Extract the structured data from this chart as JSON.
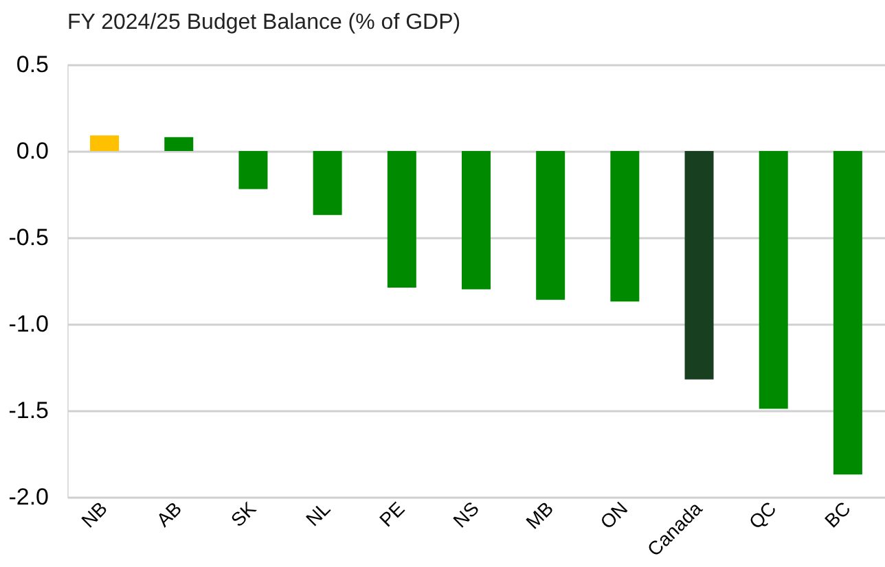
{
  "chart_data": {
    "type": "bar",
    "title": "FY 2024/25 Budget Balance (% of GDP)",
    "categories": [
      "NB",
      "AB",
      "SK",
      "NL",
      "PE",
      "NS",
      "MB",
      "ON",
      "Canada",
      "QC",
      "BC"
    ],
    "values": [
      0.09,
      0.08,
      -0.22,
      -0.37,
      -0.79,
      -0.8,
      -0.86,
      -0.87,
      -1.32,
      -1.49,
      -1.87
    ],
    "colors": [
      "#ffc000",
      "#008a00",
      "#008a00",
      "#008a00",
      "#008a00",
      "#008a00",
      "#008a00",
      "#008a00",
      "#173f20",
      "#008a00",
      "#008a00"
    ],
    "ylim": [
      -2.0,
      0.5
    ],
    "yticks": [
      {
        "value": 0.5,
        "label": "0.5"
      },
      {
        "value": 0.0,
        "label": "0.0"
      },
      {
        "value": -0.5,
        "label": "-0.5"
      },
      {
        "value": -1.0,
        "label": "-1.0"
      },
      {
        "value": -1.5,
        "label": "-1.5"
      },
      {
        "value": -2.0,
        "label": "-2.0"
      }
    ],
    "grid": "y"
  }
}
